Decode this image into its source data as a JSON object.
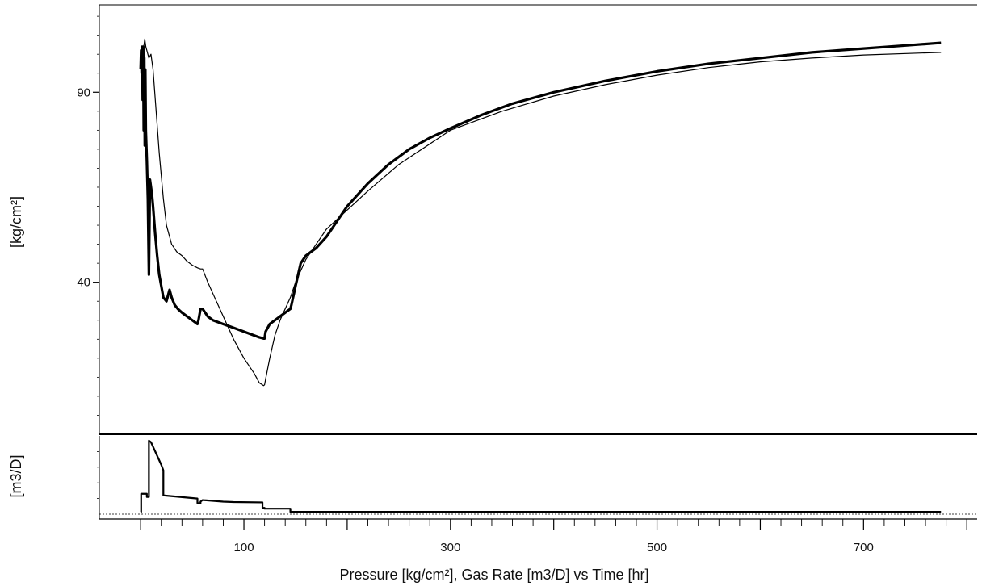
{
  "chart_data": [
    {
      "type": "line",
      "panel": "pressure",
      "title": "",
      "xlabel": "Pressure [kg/cm²], Gas Rate [m3/D] vs Time [hr]",
      "ylabel": "[kg/cm²]",
      "xlim": [
        -40,
        810
      ],
      "ylim": [
        0,
        113
      ],
      "x_ticks": [
        100,
        300,
        500,
        700
      ],
      "y_ticks": [
        40,
        90
      ],
      "grid": false,
      "series": [
        {
          "color": "#000000",
          "style": "thick",
          "x": [
            0,
            0.5,
            1,
            1.5,
            2,
            2.5,
            3,
            3.5,
            4,
            4.5,
            5,
            6,
            7,
            8,
            9,
            10,
            11,
            12,
            14,
            16,
            18,
            20,
            22,
            25,
            28,
            30,
            33,
            36,
            40,
            45,
            50,
            55,
            56,
            58,
            60,
            65,
            70,
            80,
            90,
            100,
            110,
            115,
            118,
            119,
            120,
            121,
            125,
            130,
            135,
            140,
            145,
            146,
            150,
            155,
            160,
            165,
            170,
            180,
            190,
            200,
            220,
            240,
            260,
            280,
            300,
            330,
            360,
            400,
            450,
            500,
            550,
            600,
            650,
            700,
            750,
            775
          ],
          "values": [
            96,
            101,
            95,
            102,
            88,
            102,
            80,
            99,
            76,
            96,
            80,
            72,
            62,
            42,
            67,
            65,
            63,
            60,
            53,
            47,
            42,
            39,
            36,
            35,
            38,
            36,
            34,
            33,
            32,
            31,
            30,
            29,
            30,
            33,
            33,
            31,
            30,
            29,
            28,
            27,
            26,
            25.5,
            25.3,
            25.2,
            25.2,
            27,
            29,
            30,
            31,
            32,
            33,
            34,
            39,
            45,
            47,
            48,
            49,
            52,
            56,
            60,
            66,
            71,
            75,
            78,
            80.5,
            84,
            87,
            90,
            93,
            95.5,
            97.5,
            99,
            100.5,
            101.5,
            102.5,
            103
          ]
        },
        {
          "color": "#000000",
          "style": "thin",
          "x": [
            0,
            1,
            2,
            3,
            4,
            5,
            6,
            8,
            10,
            12,
            15,
            18,
            20,
            22,
            25,
            28,
            30,
            35,
            40,
            45,
            50,
            55,
            58,
            60,
            65,
            70,
            80,
            90,
            100,
            110,
            115,
            118,
            119,
            120,
            121,
            125,
            130,
            135,
            140,
            145,
            150,
            160,
            170,
            180,
            200,
            220,
            250,
            300,
            350,
            400,
            450,
            500,
            550,
            600,
            650,
            700,
            775
          ],
          "values": [
            98,
            99,
            100,
            102,
            104,
            102,
            101,
            99,
            100,
            96,
            85,
            74,
            68,
            62,
            55,
            52,
            50,
            48,
            47,
            45.5,
            44.5,
            43.8,
            43.5,
            43.5,
            40,
            37,
            31,
            25,
            20,
            16,
            13.5,
            13,
            12.8,
            13,
            14.5,
            20,
            26,
            30,
            33,
            36,
            40,
            46,
            50,
            54,
            59,
            64,
            71,
            80,
            85,
            89,
            92,
            94.5,
            96.5,
            98,
            99,
            99.8,
            100.5
          ]
        }
      ]
    },
    {
      "type": "line",
      "panel": "gas-rate",
      "title": "",
      "xlabel": "Pressure [kg/cm²], Gas Rate [m3/D] vs Time [hr]",
      "ylabel": "[m3/D]",
      "xlim": [
        -40,
        810
      ],
      "ylim": [
        0,
        100
      ],
      "x_ticks": [
        100,
        300,
        500,
        700
      ],
      "grid": false,
      "series": [
        {
          "color": "#000000",
          "style": "step",
          "x": [
            0,
            0.5,
            0.5,
            6,
            6,
            8,
            8,
            10,
            20,
            22,
            22,
            55,
            55,
            58,
            58,
            60,
            70,
            80,
            90,
            118,
            118,
            120,
            120,
            145,
            145,
            150,
            775
          ],
          "values": [
            3,
            3,
            26,
            26,
            22,
            22,
            94,
            92,
            63,
            56,
            24,
            20,
            14,
            14,
            16,
            18,
            17,
            16,
            15.5,
            15,
            8,
            8,
            7,
            7,
            3,
            3,
            3
          ]
        }
      ]
    }
  ]
}
